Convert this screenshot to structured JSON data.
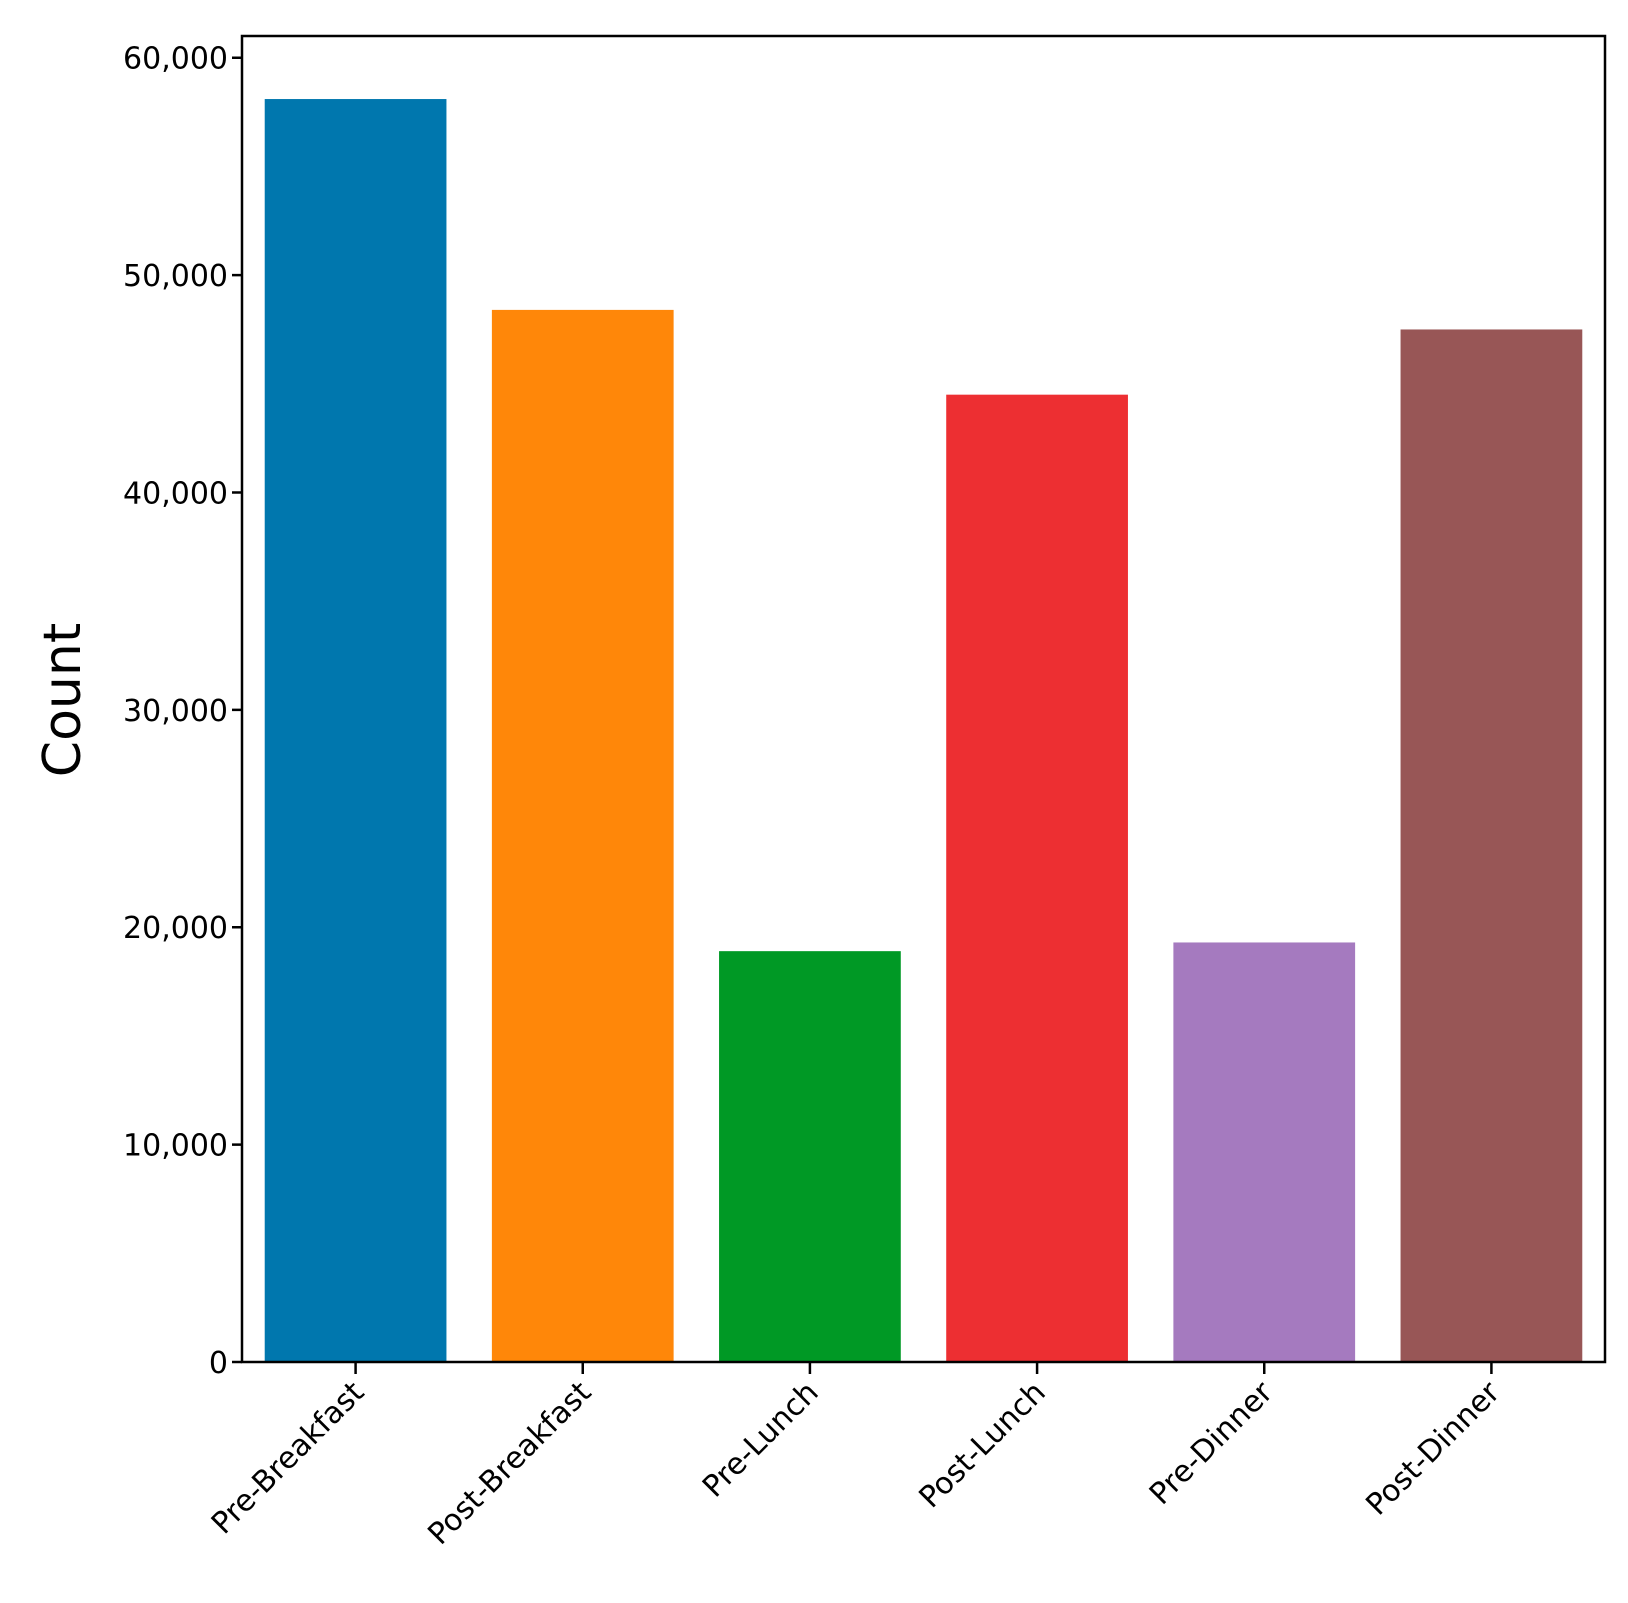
{
  "chart_data": {
    "type": "bar",
    "y_label": "Count",
    "categories": [
      "Pre-Breakfast",
      "Post-Breakfast",
      "Pre-Lunch",
      "Post-Lunch",
      "Pre-Dinner",
      "Post-Dinner"
    ],
    "values": [
      58100,
      48400,
      18900,
      44500,
      19300,
      47500
    ],
    "colors": [
      "#0077ae",
      "#ff8709",
      "#009925",
      "#ed2f32",
      "#a57abf",
      "#985656"
    ],
    "ylim": [
      0,
      61000
    ],
    "yticks": [
      0,
      {
        "value": 10000,
        "label": "10,000"
      },
      {
        "value": 20000,
        "label": "20,000"
      },
      {
        "value": 30000,
        "label": "30,000"
      },
      {
        "value": 40000,
        "label": "40,000"
      },
      {
        "value": 50000,
        "label": "50,000"
      },
      {
        "value": 60000,
        "label": "60,000"
      }
    ],
    "grid": false
  }
}
